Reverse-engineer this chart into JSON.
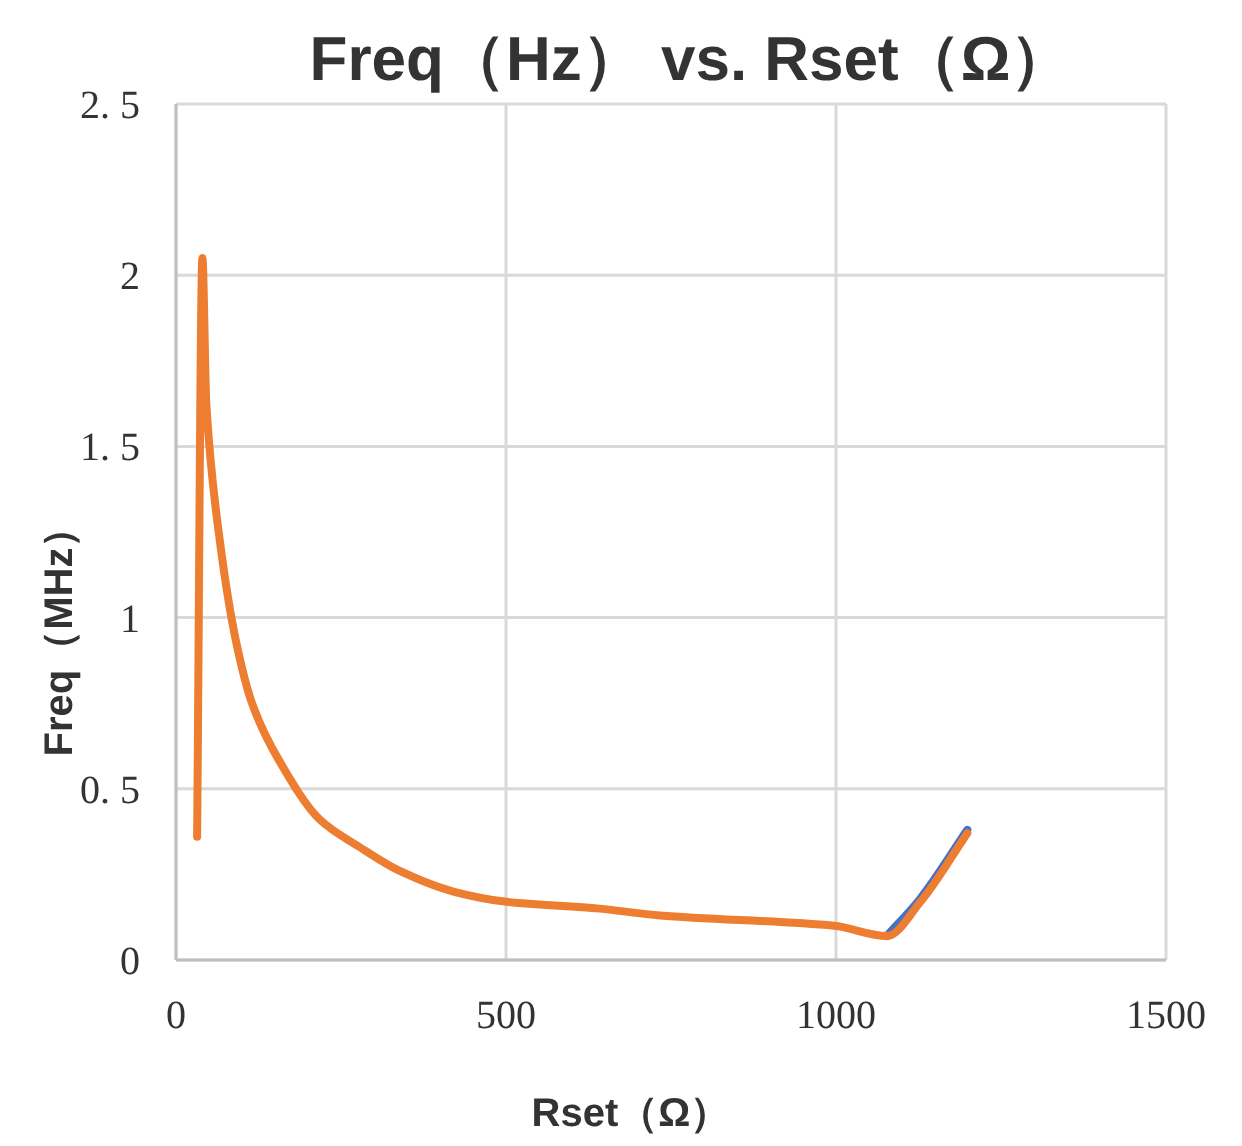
{
  "chart_data": {
    "type": "line",
    "title": "Freq（Hz） vs. Rset（Ω）",
    "xlabel": "Rset（Ω）",
    "ylabel": "Freq（MHz）",
    "xlim": [
      0,
      1500
    ],
    "xticks": [
      0,
      500,
      1000,
      1500
    ],
    "ylim": [
      0,
      2.5
    ],
    "yticks": [
      0,
      {
        "value": 0.5,
        "label": "0. 5"
      },
      1,
      {
        "value": 1.5,
        "label": "1. 5"
      },
      2,
      {
        "value": 2.5,
        "label": "2. 5"
      }
    ],
    "grid": true,
    "line_style": "solid",
    "marker": "none",
    "series": [
      {
        "color": "#4472c4",
        "x": [
          1077,
          1128,
          1199
        ],
        "values": [
          0.07,
          0.18,
          0.38
        ]
      },
      {
        "color": "#ed7d31",
        "x": [
          32,
          40,
          46,
          66,
          91,
          117,
          157,
          218,
          278,
          339,
          420,
          501,
          642,
          733,
          997,
          1077,
          1128,
          1199
        ],
        "values": [
          0.36,
          2.05,
          1.62,
          1.23,
          0.93,
          0.74,
          0.58,
          0.41,
          0.33,
          0.26,
          0.2,
          0.17,
          0.15,
          0.13,
          0.1,
          0.07,
          0.17,
          0.37
        ]
      }
    ]
  }
}
